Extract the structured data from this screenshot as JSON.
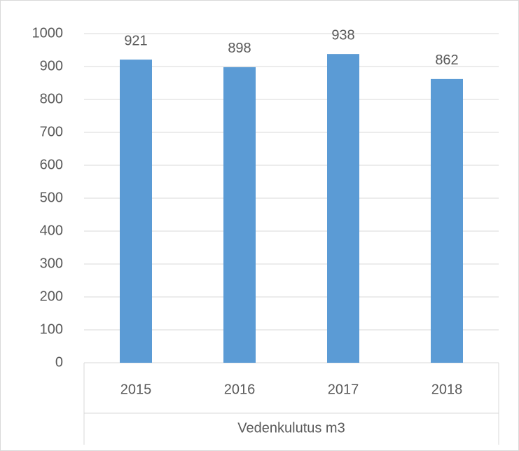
{
  "chart_data": {
    "type": "bar",
    "x_label": "Vedenkulutus m3",
    "categories": [
      "2015",
      "2016",
      "2017",
      "2018"
    ],
    "values": [
      921,
      898,
      938,
      862
    ],
    "color": "#5b9bd5",
    "ylim": [
      0,
      1000
    ],
    "yticks": [
      0,
      100,
      200,
      300,
      400,
      500,
      600,
      700,
      800,
      900,
      1000
    ],
    "grid": true
  }
}
